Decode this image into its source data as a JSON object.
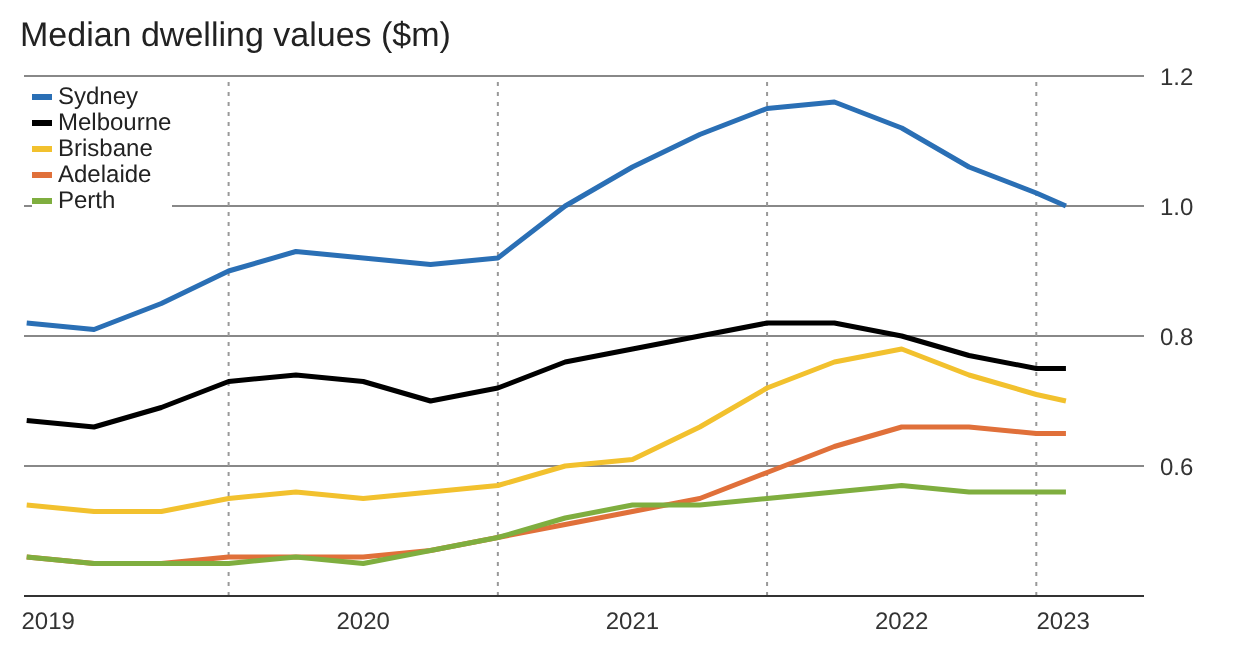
{
  "chart_data": {
    "type": "line",
    "title": "Median dwelling values ($m)",
    "x": [
      2019.25,
      2019.5,
      2019.75,
      2020,
      2020.25,
      2020.5,
      2020.75,
      2021,
      2021.25,
      2021.5,
      2021.75,
      2022,
      2022.25,
      2022.5,
      2022.75,
      2023,
      2023.11
    ],
    "series": [
      {
        "name": "Sydney",
        "color": "#2a6fb5",
        "values": [
          0.82,
          0.81,
          0.85,
          0.9,
          0.93,
          0.92,
          0.91,
          0.92,
          1.0,
          1.06,
          1.11,
          1.15,
          1.16,
          1.12,
          1.06,
          1.02,
          1.0
        ]
      },
      {
        "name": "Melbourne",
        "color": "#000000",
        "values": [
          0.67,
          0.66,
          0.69,
          0.73,
          0.74,
          0.73,
          0.7,
          0.72,
          0.76,
          0.78,
          0.8,
          0.82,
          0.82,
          0.8,
          0.77,
          0.75,
          0.75
        ]
      },
      {
        "name": "Brisbane",
        "color": "#f2c12e",
        "values": [
          0.54,
          0.53,
          0.53,
          0.55,
          0.56,
          0.55,
          0.56,
          0.57,
          0.6,
          0.61,
          0.66,
          0.72,
          0.76,
          0.78,
          0.74,
          0.71,
          0.7
        ]
      },
      {
        "name": "Adelaide",
        "color": "#e0703a",
        "values": [
          0.46,
          0.45,
          0.45,
          0.46,
          0.46,
          0.46,
          0.47,
          0.49,
          0.51,
          0.53,
          0.55,
          0.59,
          0.63,
          0.66,
          0.66,
          0.65,
          0.65
        ]
      },
      {
        "name": "Perth",
        "color": "#7fae3f",
        "values": [
          0.46,
          0.45,
          0.45,
          0.45,
          0.46,
          0.45,
          0.47,
          0.49,
          0.52,
          0.54,
          0.54,
          0.55,
          0.56,
          0.57,
          0.56,
          0.56,
          0.56
        ]
      }
    ],
    "xlim": [
      2019.24,
      2023.4
    ],
    "xticks": [
      {
        "value": 2019.33,
        "label": "2019"
      },
      {
        "value": 2020.5,
        "label": "2020"
      },
      {
        "value": 2021.5,
        "label": "2021"
      },
      {
        "value": 2022.5,
        "label": "2022"
      },
      {
        "value": 2023.1,
        "label": "2023"
      }
    ],
    "ylim": [
      0.4,
      1.2
    ],
    "yticks": [
      {
        "value": 0.6,
        "label": "0.6"
      },
      {
        "value": 0.8,
        "label": "0.8"
      },
      {
        "value": 1,
        "label": "1.0"
      },
      {
        "value": 1.2,
        "label": "1.2"
      }
    ],
    "ref_lines": [
      {
        "axis": "x",
        "value": 2020,
        "color": "#999999",
        "line_style": "dotted"
      },
      {
        "axis": "x",
        "value": 2021,
        "color": "#999999",
        "line_style": "dotted"
      },
      {
        "axis": "x",
        "value": 2022,
        "color": "#999999",
        "line_style": "dotted"
      },
      {
        "axis": "x",
        "value": 2023,
        "color": "#999999",
        "line_style": "dotted"
      }
    ],
    "grid": "y",
    "legend": "top left",
    "marker": "none",
    "line_style": "solid"
  }
}
